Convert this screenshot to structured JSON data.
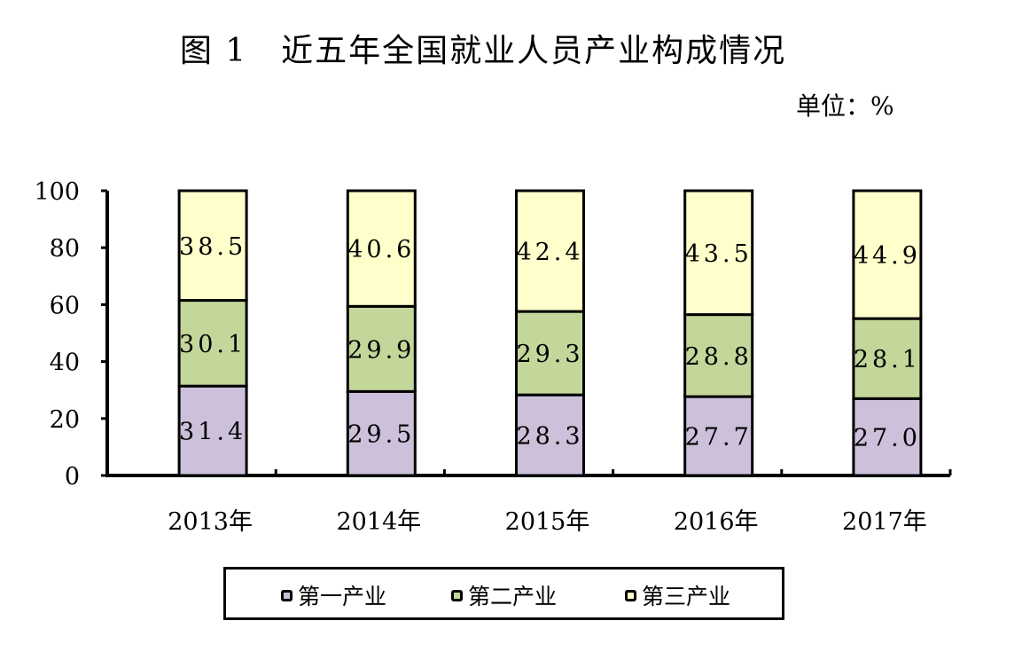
{
  "chart_data": {
    "type": "bar",
    "stacked": true,
    "title": "图 1　近五年全国就业人员产业构成情况",
    "unit": "单位：%",
    "categories": [
      "2013年",
      "2014年",
      "2015年",
      "2016年",
      "2017年"
    ],
    "series": [
      {
        "name": "第一产业",
        "values": [
          31.4,
          29.5,
          28.3,
          27.7,
          27.0
        ],
        "labels": [
          "31.4",
          "29.5",
          "28.3",
          "27.7",
          "27.0"
        ],
        "color": "#ccc0da"
      },
      {
        "name": "第二产业",
        "values": [
          30.1,
          29.9,
          29.3,
          28.8,
          28.1
        ],
        "labels": [
          "30.1",
          "29.9",
          "29.3",
          "28.8",
          "28.1"
        ],
        "color": "#c4d79b"
      },
      {
        "name": "第三产业",
        "values": [
          38.5,
          40.6,
          42.4,
          43.5,
          44.9
        ],
        "labels": [
          "38.5",
          "40.6",
          "42.4",
          "43.5",
          "44.9"
        ],
        "color": "#ffffcc"
      }
    ],
    "ylim": [
      0,
      100
    ],
    "yticks": [
      "0",
      "20",
      "40",
      "60",
      "80",
      "100"
    ],
    "grid": false,
    "legend": "bottom"
  }
}
